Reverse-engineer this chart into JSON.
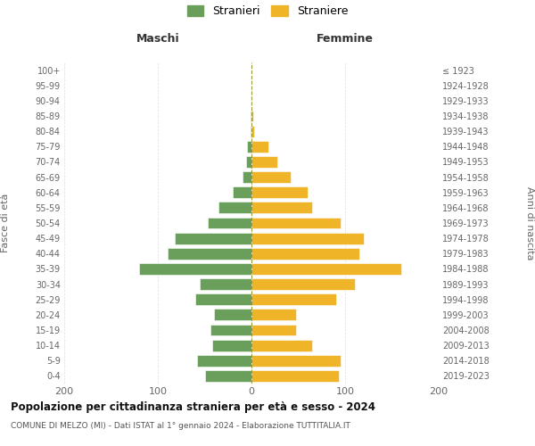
{
  "age_groups": [
    "0-4",
    "5-9",
    "10-14",
    "15-19",
    "20-24",
    "25-29",
    "30-34",
    "35-39",
    "40-44",
    "45-49",
    "50-54",
    "55-59",
    "60-64",
    "65-69",
    "70-74",
    "75-79",
    "80-84",
    "85-89",
    "90-94",
    "95-99",
    "100+"
  ],
  "birth_years": [
    "2019-2023",
    "2014-2018",
    "2009-2013",
    "2004-2008",
    "1999-2003",
    "1994-1998",
    "1989-1993",
    "1984-1988",
    "1979-1983",
    "1974-1978",
    "1969-1973",
    "1964-1968",
    "1959-1963",
    "1954-1958",
    "1949-1953",
    "1944-1948",
    "1939-1943",
    "1934-1938",
    "1929-1933",
    "1924-1928",
    "≤ 1923"
  ],
  "maschi": [
    50,
    58,
    42,
    44,
    40,
    60,
    55,
    120,
    90,
    82,
    47,
    35,
    20,
    10,
    6,
    5,
    1,
    1,
    0,
    0,
    0
  ],
  "femmine": [
    93,
    95,
    65,
    48,
    48,
    90,
    110,
    160,
    115,
    120,
    95,
    65,
    60,
    42,
    28,
    18,
    3,
    2,
    0,
    0,
    0
  ],
  "color_maschi": "#6a9e5b",
  "color_femmine": "#f0b429",
  "title": "Popolazione per cittadinanza straniera per età e sesso - 2024",
  "subtitle": "COMUNE DI MELZO (MI) - Dati ISTAT al 1° gennaio 2024 - Elaborazione TUTTITALIA.IT",
  "xlabel_left": "Maschi",
  "xlabel_right": "Femmine",
  "ylabel_left": "Fasce di età",
  "ylabel_right": "Anni di nascita",
  "legend_maschi": "Stranieri",
  "legend_femmine": "Straniere",
  "xlim": 200,
  "background_color": "#ffffff",
  "grid_color": "#cccccc"
}
